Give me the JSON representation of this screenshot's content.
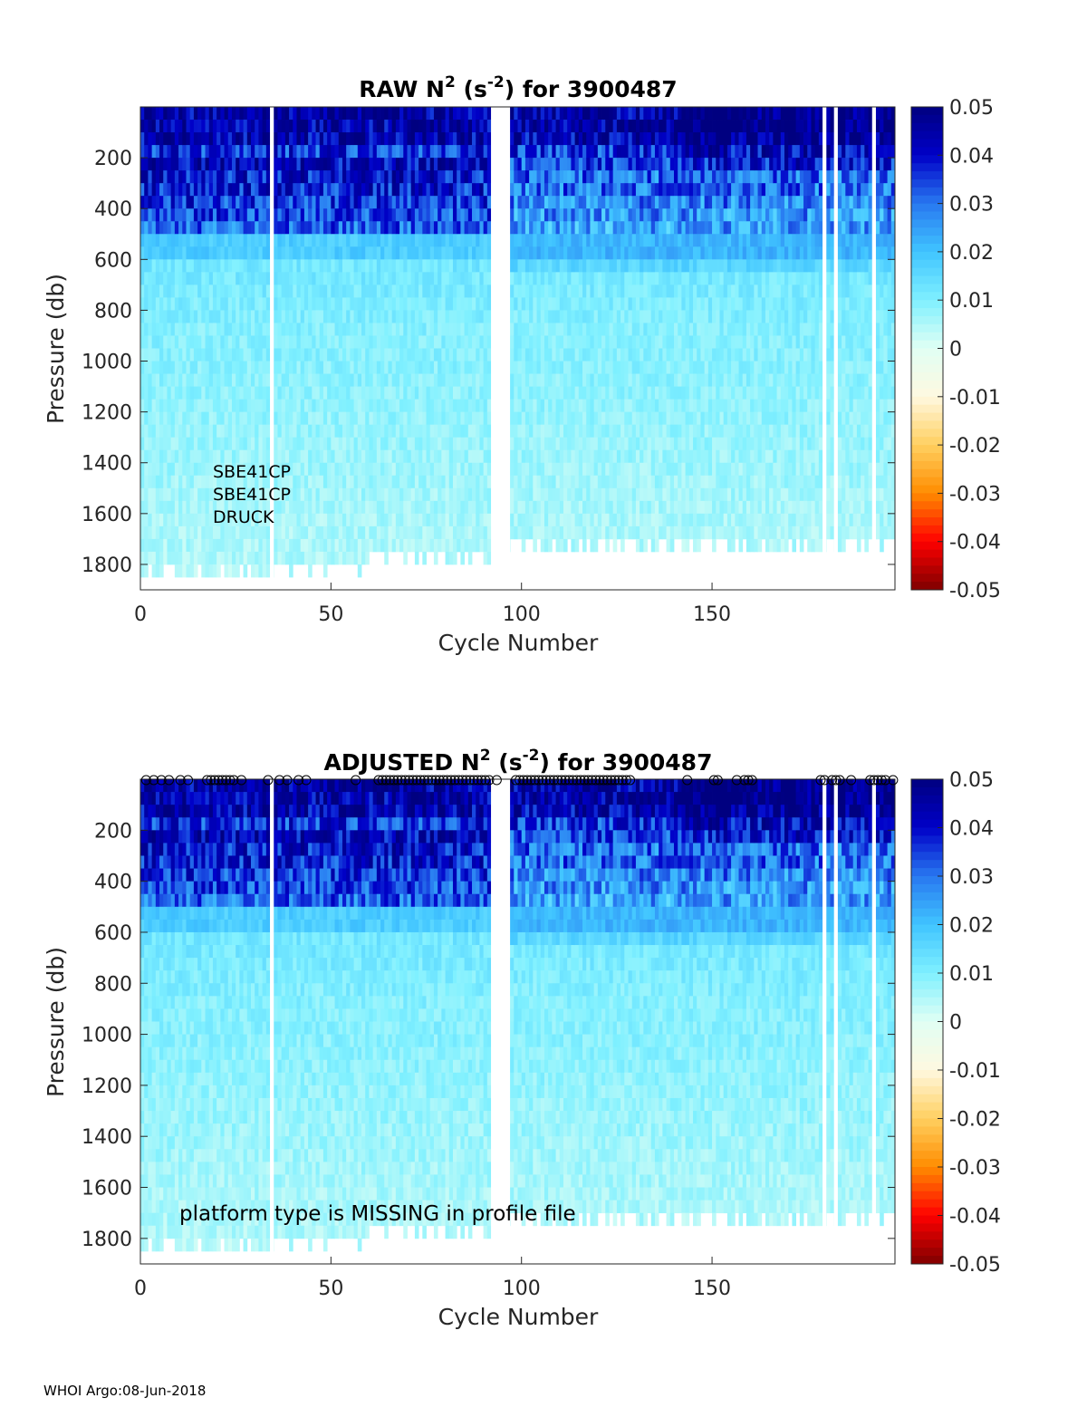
{
  "footer": "WHOI Argo:08-Jun-2018",
  "colors": {
    "colormap": [
      "#7f0000",
      "#ff0000",
      "#ff8c00",
      "#ffd060",
      "#fff8e0",
      "#e0fff4",
      "#7ff0ff",
      "#40c4ff",
      "#2878f0",
      "#0000c8",
      "#000080"
    ]
  },
  "chart_data": [
    {
      "type": "heatmap",
      "title_parts": {
        "prefix": "RAW N",
        "sup1": "2",
        "mid": " (s",
        "sup2": "-2",
        "suffix": ") for 3900487"
      },
      "xlabel": "Cycle Number",
      "ylabel": "Pressure (db)",
      "xlim": [
        0,
        198
      ],
      "ylim": [
        1900,
        0
      ],
      "x_ticks": [
        0,
        50,
        100,
        150
      ],
      "y_ticks": [
        200,
        400,
        600,
        800,
        1000,
        1200,
        1400,
        1600,
        1800
      ],
      "colorbar": {
        "clim": [
          -0.05,
          0.05
        ],
        "ticks": [
          "0.05",
          "0.04",
          "0.03",
          "0.02",
          "0.01",
          "0",
          "-0.01",
          "-0.02",
          "-0.03",
          "-0.04",
          "-0.05"
        ]
      },
      "missing_cycles": [
        [
          34,
          35
        ],
        [
          92,
          97
        ],
        [
          179,
          180
        ],
        [
          182,
          183
        ],
        [
          192,
          193
        ]
      ],
      "annotations": [
        "SBE41CP",
        "SBE41CP",
        "DRUCK"
      ],
      "markers": []
    },
    {
      "type": "heatmap",
      "title_parts": {
        "prefix": "ADJUSTED N",
        "sup1": "2",
        "mid": " (s",
        "sup2": "-2",
        "suffix": ") for 3900487"
      },
      "xlabel": "Cycle Number",
      "ylabel": "Pressure (db)",
      "xlim": [
        0,
        198
      ],
      "ylim": [
        1900,
        0
      ],
      "x_ticks": [
        0,
        50,
        100,
        150
      ],
      "y_ticks": [
        200,
        400,
        600,
        800,
        1000,
        1200,
        1400,
        1600,
        1800
      ],
      "colorbar": {
        "clim": [
          -0.05,
          0.05
        ],
        "ticks": [
          "0.05",
          "0.04",
          "0.03",
          "0.02",
          "0.01",
          "0",
          "-0.01",
          "-0.02",
          "-0.03",
          "-0.04",
          "-0.05"
        ]
      },
      "missing_cycles": [
        [
          34,
          35
        ],
        [
          92,
          97
        ],
        [
          179,
          180
        ],
        [
          182,
          183
        ],
        [
          192,
          193
        ]
      ],
      "annotations": [
        "platform type is MISSING in profile file"
      ],
      "markers": [
        1,
        3,
        5,
        7,
        10,
        12,
        17,
        18,
        19,
        20,
        21,
        22,
        23,
        24,
        26,
        33,
        36,
        38,
        41,
        43,
        56,
        62,
        63,
        64,
        65,
        66,
        67,
        68,
        69,
        70,
        71,
        72,
        73,
        74,
        75,
        76,
        77,
        78,
        79,
        80,
        81,
        82,
        83,
        84,
        85,
        86,
        87,
        88,
        89,
        90,
        91,
        93,
        98,
        99,
        100,
        101,
        102,
        103,
        104,
        105,
        106,
        107,
        108,
        109,
        110,
        111,
        112,
        113,
        114,
        115,
        116,
        117,
        118,
        119,
        120,
        121,
        122,
        123,
        124,
        125,
        126,
        127,
        128,
        143,
        150,
        151,
        156,
        158,
        159,
        160,
        178,
        179,
        181,
        182,
        183,
        186,
        191,
        192,
        193,
        194,
        195,
        197
      ]
    }
  ]
}
